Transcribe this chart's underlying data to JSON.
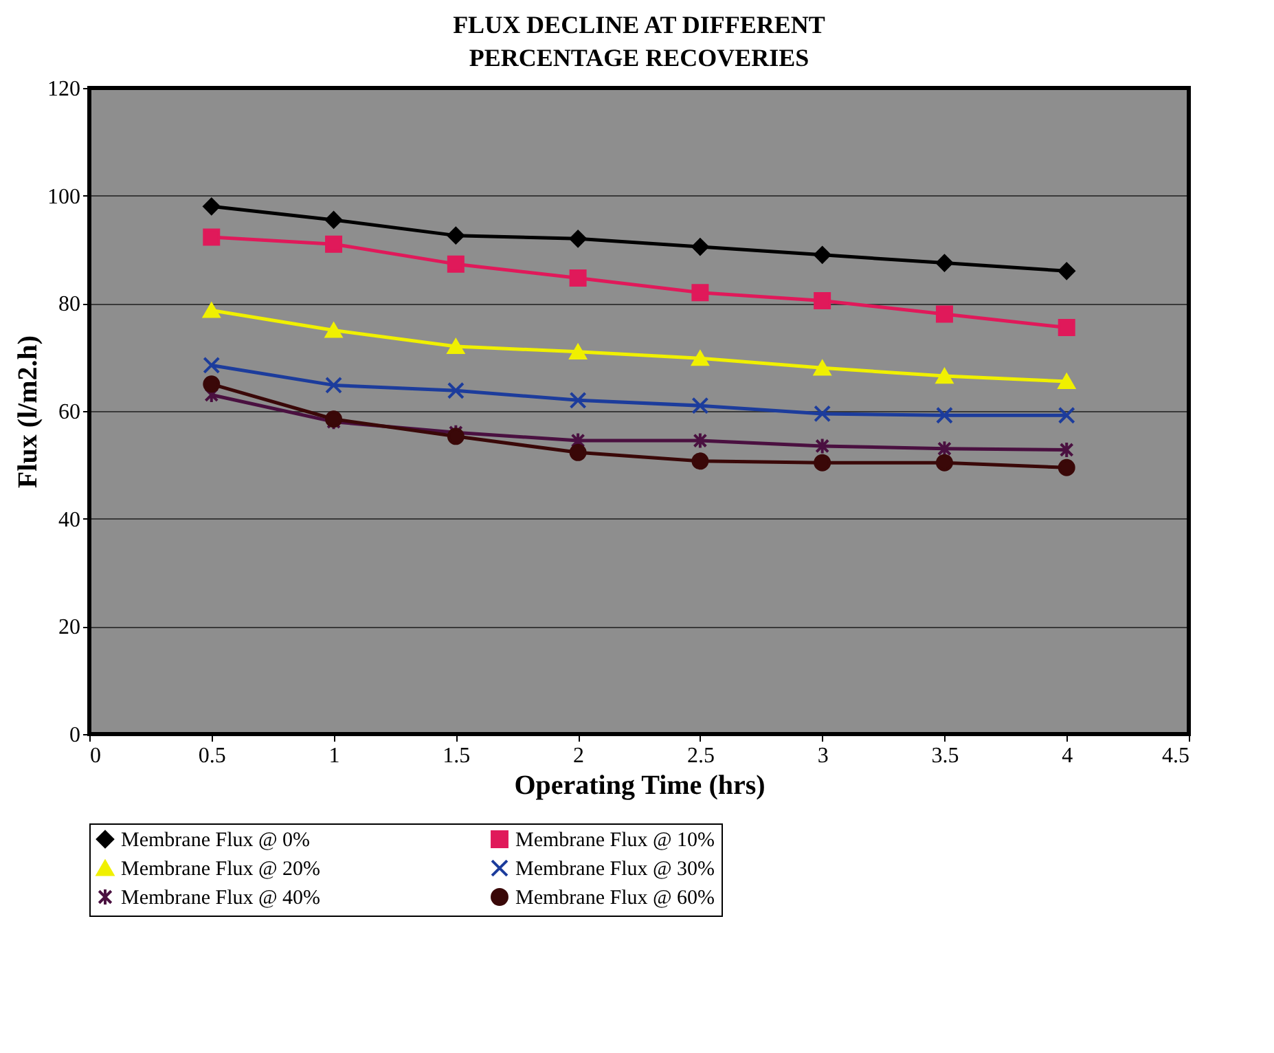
{
  "chart_data": {
    "type": "line",
    "title": "FLUX DECLINE AT DIFFERENT PERCENTAGE RECOVERIES",
    "xlabel": "Operating Time (hrs)",
    "ylabel": "Flux (l/m2.h)",
    "x": [
      0.5,
      1,
      1.5,
      2,
      2.5,
      3,
      3.5,
      4
    ],
    "xlim": [
      0,
      4.5
    ],
    "xticks": [
      0,
      0.5,
      1,
      1.5,
      2,
      2.5,
      3,
      3.5,
      4,
      4.5
    ],
    "ylim": [
      0,
      120
    ],
    "yticks": [
      0,
      20,
      40,
      60,
      80,
      100,
      120
    ],
    "grid": "y",
    "legend": "bottom",
    "line_style": "solid",
    "series": [
      {
        "name": "Membrane Flux @ 0%",
        "color": "#000000",
        "marker": "diamond",
        "values": [
          98,
          95.5,
          92.6,
          92,
          90.5,
          89,
          87.5,
          86
        ]
      },
      {
        "name": "Membrane Flux @ 10%",
        "color": "#e0195a",
        "marker": "square",
        "values": [
          92.3,
          91,
          87.3,
          84.7,
          82,
          80.5,
          78,
          75.5
        ]
      },
      {
        "name": "Membrane Flux @ 20%",
        "color": "#f0f000",
        "marker": "triangle",
        "values": [
          78.7,
          75,
          72,
          71,
          69.8,
          68,
          66.5,
          65.5
        ]
      },
      {
        "name": "Membrane Flux @ 30%",
        "color": "#1c3c9c",
        "marker": "cross",
        "values": [
          68.5,
          64.8,
          63.8,
          62,
          61,
          59.5,
          59.2,
          59.2
        ]
      },
      {
        "name": "Membrane Flux @ 40%",
        "color": "#4a1040",
        "marker": "cross",
        "values": [
          63,
          58,
          56,
          54.5,
          54.5,
          53.5,
          53,
          52.8
        ]
      },
      {
        "name": "Membrane Flux @ 60%",
        "color": "#3a0808",
        "marker": "circle",
        "values": [
          65,
          58.5,
          55.3,
          52.3,
          50.7,
          50.4,
          50.4,
          49.5
        ]
      }
    ]
  }
}
